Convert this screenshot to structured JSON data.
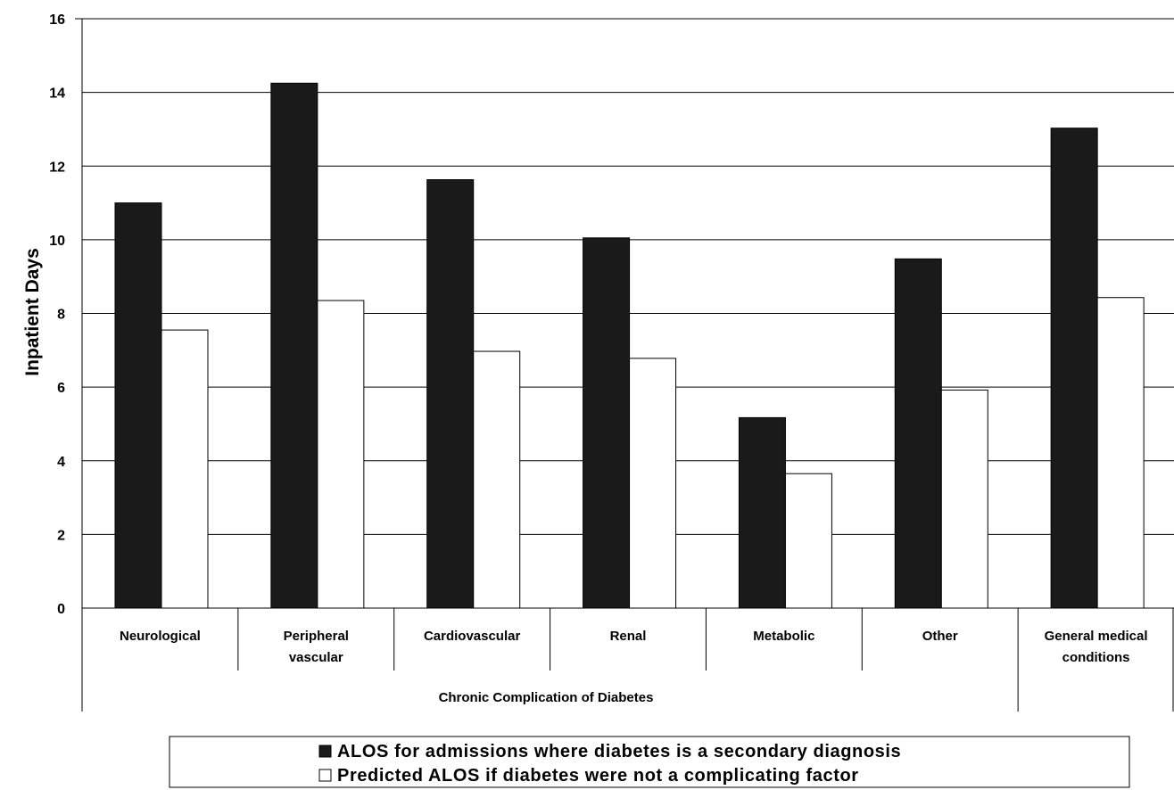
{
  "chart_data": {
    "type": "bar",
    "ylabel": "Inpatient Days",
    "ylim": [
      0,
      16
    ],
    "yticks": [
      0,
      2,
      4,
      6,
      8,
      10,
      12,
      14,
      16
    ],
    "grid": true,
    "legend_position": "bottom",
    "categories": [
      [
        "Neurological"
      ],
      [
        "Peripheral",
        "vascular"
      ],
      [
        "Cardiovascular"
      ],
      [
        "Renal"
      ],
      [
        "Metabolic"
      ],
      [
        "Other"
      ],
      [
        "General medical",
        "conditions"
      ]
    ],
    "group_label": "Chronic Complication of Diabetes",
    "series": [
      {
        "name": "ALOS for admissions where diabetes is a secondary diagnosis",
        "color": "#1a1a1a",
        "values": [
          11.0,
          14.25,
          11.63,
          10.05,
          5.17,
          9.48,
          13.03
        ]
      },
      {
        "name": "Predicted ALOS if diabetes were not a complicating factor",
        "color": "#ffffff",
        "values": [
          7.55,
          8.35,
          6.97,
          6.78,
          3.65,
          5.92,
          8.43
        ]
      }
    ]
  }
}
